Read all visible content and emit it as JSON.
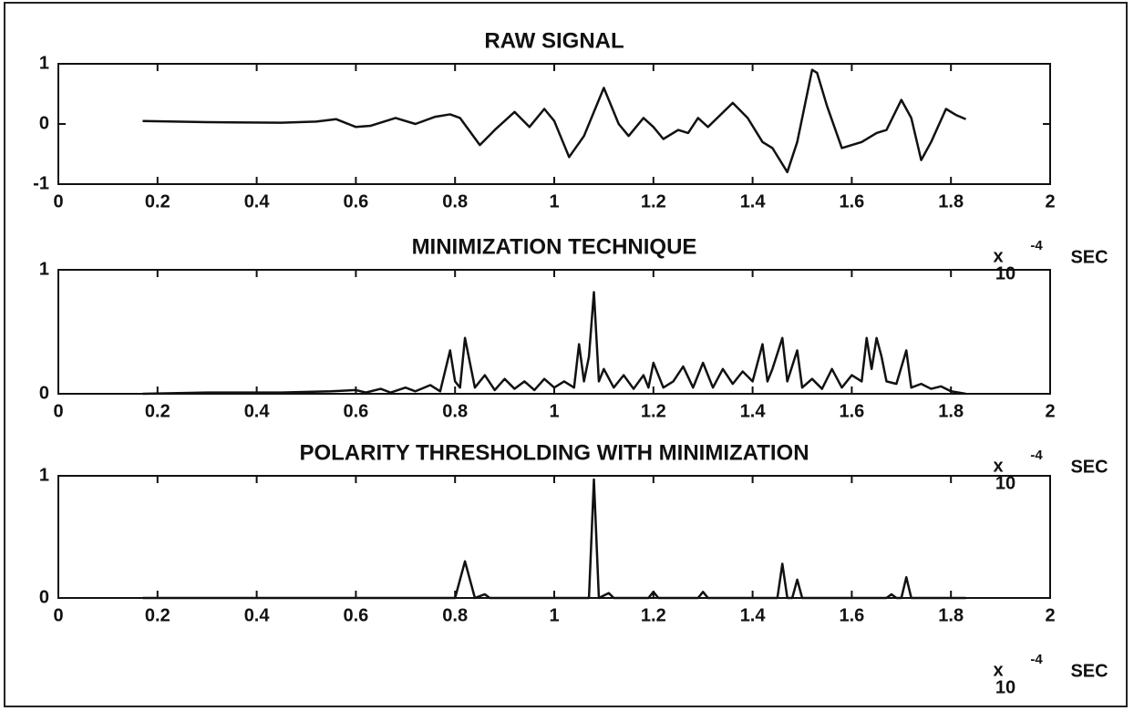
{
  "chart_data": [
    {
      "type": "line",
      "title": "RAW SIGNAL",
      "xlim": [
        0,
        2
      ],
      "xticks": [
        0,
        0.2,
        0.4,
        0.6,
        0.8,
        1,
        1.2,
        1.4,
        1.6,
        1.8,
        2
      ],
      "ylim": [
        -1,
        1
      ],
      "yticks": [
        -1,
        0,
        1
      ],
      "x_multiplier": "x",
      "x_exponent_base": "10",
      "x_exponent": "-4",
      "xlabel": "SEC",
      "x": [
        0.17,
        0.3,
        0.45,
        0.52,
        0.56,
        0.6,
        0.63,
        0.68,
        0.72,
        0.76,
        0.79,
        0.81,
        0.85,
        0.88,
        0.92,
        0.95,
        0.98,
        1.0,
        1.03,
        1.06,
        1.1,
        1.13,
        1.15,
        1.18,
        1.2,
        1.22,
        1.25,
        1.27,
        1.29,
        1.31,
        1.36,
        1.39,
        1.42,
        1.44,
        1.47,
        1.49,
        1.52,
        1.53,
        1.55,
        1.58,
        1.62,
        1.65,
        1.67,
        1.7,
        1.72,
        1.74,
        1.76,
        1.79,
        1.81,
        1.83
      ],
      "series": [
        {
          "color": "#111111",
          "values": [
            0.05,
            0.03,
            0.02,
            0.04,
            0.08,
            -0.05,
            -0.03,
            0.1,
            0.0,
            0.12,
            0.16,
            0.1,
            -0.35,
            -0.1,
            0.2,
            -0.05,
            0.25,
            0.05,
            -0.55,
            -0.2,
            0.6,
            0.0,
            -0.2,
            0.1,
            -0.05,
            -0.25,
            -0.1,
            -0.15,
            0.1,
            -0.05,
            0.35,
            0.1,
            -0.3,
            -0.4,
            -0.8,
            -0.3,
            0.9,
            0.85,
            0.3,
            -0.4,
            -0.3,
            -0.15,
            -0.1,
            0.4,
            0.1,
            -0.6,
            -0.3,
            0.25,
            0.15,
            0.08
          ]
        }
      ]
    },
    {
      "type": "line",
      "title": "MINIMIZATION TECHNIQUE",
      "xlim": [
        0,
        2
      ],
      "xticks": [
        0,
        0.2,
        0.4,
        0.6,
        0.8,
        1,
        1.2,
        1.4,
        1.6,
        1.8,
        2
      ],
      "ylim": [
        0,
        1
      ],
      "yticks": [
        0,
        1
      ],
      "x_multiplier": "x",
      "x_exponent_base": "10",
      "x_exponent": "-4",
      "xlabel": "SEC",
      "x": [
        0.17,
        0.3,
        0.45,
        0.55,
        0.6,
        0.62,
        0.65,
        0.67,
        0.7,
        0.72,
        0.75,
        0.77,
        0.79,
        0.8,
        0.81,
        0.82,
        0.84,
        0.86,
        0.88,
        0.9,
        0.92,
        0.94,
        0.96,
        0.98,
        1.0,
        1.02,
        1.04,
        1.05,
        1.06,
        1.07,
        1.08,
        1.09,
        1.1,
        1.12,
        1.14,
        1.16,
        1.18,
        1.19,
        1.2,
        1.22,
        1.24,
        1.26,
        1.28,
        1.3,
        1.32,
        1.34,
        1.36,
        1.38,
        1.4,
        1.42,
        1.43,
        1.44,
        1.46,
        1.47,
        1.49,
        1.5,
        1.52,
        1.54,
        1.56,
        1.58,
        1.6,
        1.62,
        1.63,
        1.64,
        1.65,
        1.66,
        1.67,
        1.69,
        1.71,
        1.72,
        1.74,
        1.76,
        1.78,
        1.8,
        1.83
      ],
      "series": [
        {
          "color": "#111111",
          "values": [
            0,
            0.01,
            0.01,
            0.02,
            0.03,
            0.01,
            0.04,
            0.01,
            0.05,
            0.02,
            0.07,
            0.02,
            0.35,
            0.1,
            0.05,
            0.45,
            0.05,
            0.15,
            0.03,
            0.12,
            0.04,
            0.1,
            0.03,
            0.12,
            0.05,
            0.1,
            0.05,
            0.4,
            0.1,
            0.3,
            0.82,
            0.1,
            0.2,
            0.05,
            0.15,
            0.04,
            0.15,
            0.05,
            0.25,
            0.05,
            0.1,
            0.22,
            0.05,
            0.25,
            0.05,
            0.2,
            0.08,
            0.18,
            0.1,
            0.4,
            0.1,
            0.2,
            0.45,
            0.1,
            0.35,
            0.05,
            0.12,
            0.04,
            0.2,
            0.05,
            0.15,
            0.1,
            0.45,
            0.2,
            0.45,
            0.3,
            0.1,
            0.08,
            0.35,
            0.05,
            0.08,
            0.04,
            0.06,
            0.02,
            0.0
          ]
        }
      ]
    },
    {
      "type": "line",
      "title": "POLARITY THRESHOLDING WITH MINIMIZATION",
      "xlim": [
        0,
        2
      ],
      "xticks": [
        0,
        0.2,
        0.4,
        0.6,
        0.8,
        1,
        1.2,
        1.4,
        1.6,
        1.8,
        2
      ],
      "ylim": [
        0,
        1
      ],
      "yticks": [
        0,
        1
      ],
      "x_multiplier": "x",
      "x_exponent_base": "10",
      "x_exponent": "-4",
      "xlabel": "SEC",
      "x": [
        0.17,
        0.8,
        0.82,
        0.84,
        0.86,
        0.87,
        1.07,
        1.08,
        1.09,
        1.11,
        1.12,
        1.19,
        1.2,
        1.21,
        1.29,
        1.3,
        1.31,
        1.45,
        1.46,
        1.47,
        1.48,
        1.49,
        1.5,
        1.67,
        1.68,
        1.69,
        1.7,
        1.71,
        1.72,
        1.83
      ],
      "series": [
        {
          "color": "#111111",
          "values": [
            0,
            0,
            0.3,
            0,
            0.03,
            0,
            0,
            0.97,
            0,
            0.04,
            0,
            0,
            0.05,
            0,
            0,
            0.05,
            0,
            0,
            0.28,
            0,
            0,
            0.15,
            0,
            0,
            0.03,
            0,
            0,
            0.17,
            0,
            0
          ]
        }
      ]
    }
  ]
}
